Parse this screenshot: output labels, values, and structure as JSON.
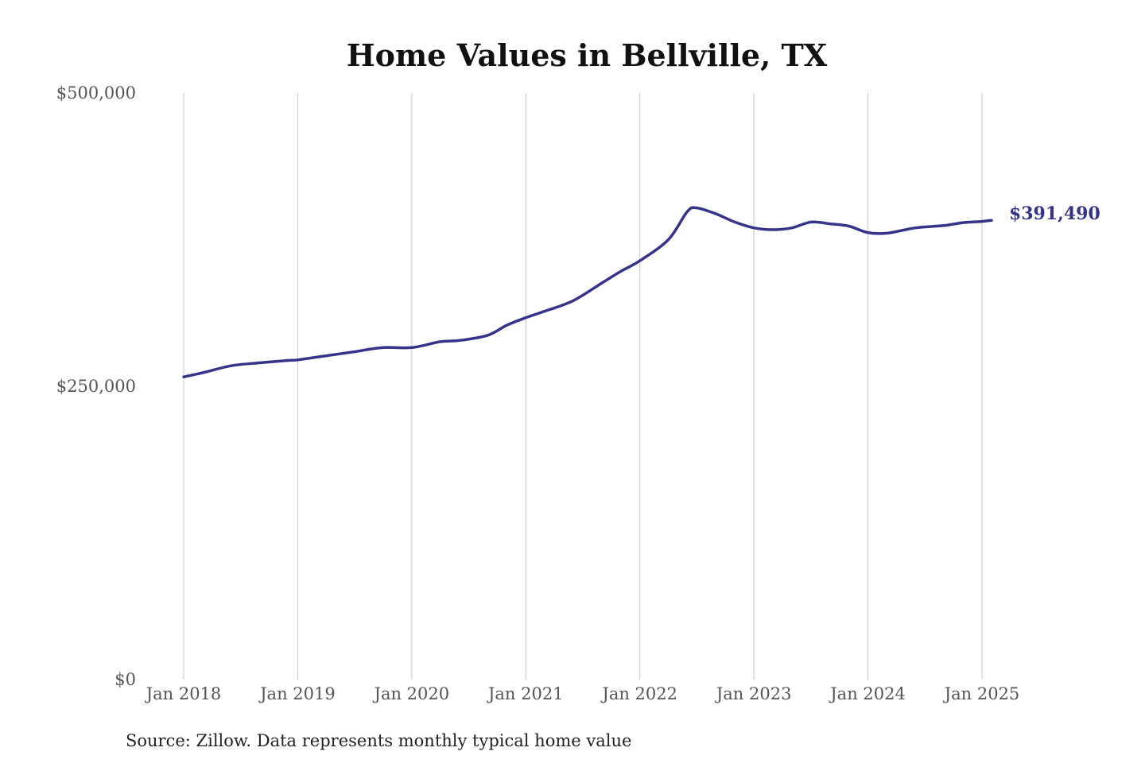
{
  "chart_data": {
    "type": "line",
    "title": "Home Values in Bellville, TX",
    "xlabel": "",
    "ylabel": "",
    "x_ticks": [
      "Jan 2018",
      "Jan 2019",
      "Jan 2020",
      "Jan 2021",
      "Jan 2022",
      "Jan 2023",
      "Jan 2024",
      "Jan 2025"
    ],
    "y_ticks": [
      "$0",
      "$250,000",
      "$500,000"
    ],
    "ylim": [
      0,
      500000
    ],
    "xlim": [
      "2018-01",
      "2025-01"
    ],
    "grid": "vertical",
    "legend": "none",
    "line_color": "#35348a",
    "end_label": "$391,490",
    "source": "Source: Zillow. Data represents monthly typical home value",
    "series": [
      {
        "points": [
          [
            "2018-01",
            258000
          ],
          [
            "2018-03",
            261500
          ],
          [
            "2018-06",
            267500
          ],
          [
            "2018-09",
            270000
          ],
          [
            "2018-12",
            272000
          ],
          [
            "2019-01",
            272500
          ],
          [
            "2019-04",
            276000
          ],
          [
            "2019-07",
            279500
          ],
          [
            "2019-10",
            283000
          ],
          [
            "2020-01",
            283000
          ],
          [
            "2020-04",
            288000
          ],
          [
            "2020-06",
            289000
          ],
          [
            "2020-09",
            293500
          ],
          [
            "2020-11",
            302000
          ],
          [
            "2021-01",
            308500
          ],
          [
            "2021-03",
            314000
          ],
          [
            "2021-06",
            323000
          ],
          [
            "2021-09",
            338000
          ],
          [
            "2021-11",
            348000
          ],
          [
            "2022-01",
            357000
          ],
          [
            "2022-04",
            375000
          ],
          [
            "2022-06",
            399000
          ],
          [
            "2022-07",
            402000
          ],
          [
            "2022-09",
            397000
          ],
          [
            "2022-11",
            390000
          ],
          [
            "2023-01",
            385000
          ],
          [
            "2023-03",
            383500
          ],
          [
            "2023-05",
            385000
          ],
          [
            "2023-07",
            390000
          ],
          [
            "2023-09",
            388500
          ],
          [
            "2023-11",
            386500
          ],
          [
            "2024-01",
            381000
          ],
          [
            "2024-03",
            380500
          ],
          [
            "2024-06",
            385000
          ],
          [
            "2024-09",
            387000
          ],
          [
            "2024-11",
            389500
          ],
          [
            "2025-01",
            390500
          ],
          [
            "2025-02",
            391490
          ]
        ]
      }
    ]
  }
}
